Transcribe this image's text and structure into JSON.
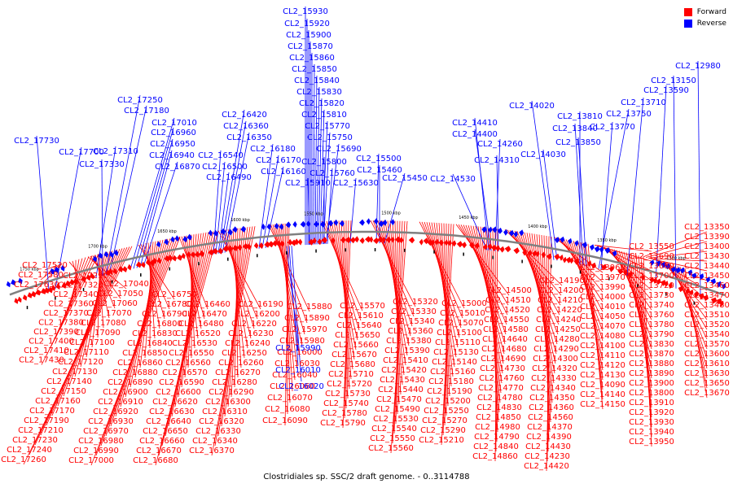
{
  "caption": "Clostridiales sp. SSC/2 draft genome. - 0..3114788",
  "legend": [
    {
      "label": "Forward",
      "color": "#ff0000"
    },
    {
      "label": "Reverse",
      "color": "#0000ff"
    }
  ],
  "colors": {
    "forward": "#ff0000",
    "reverse": "#0000ff",
    "backbone": "#808080"
  },
  "kbp_ticks": [
    "1750 kbp",
    "1700 kbp",
    "1650 kbp",
    "1600 kbp",
    "1550 kbp",
    "1500 kbp",
    "1450 kbp",
    "1400 kbp",
    "1350 kbp",
    "1300 kbp"
  ],
  "forward_labels": [
    "CL2_17520",
    "CL2_17580",
    "CL2_17630",
    "CL2_17290",
    "CL2_17320",
    "CL2_17340",
    "CL2_17360",
    "CL2_17370",
    "CL2_17380",
    "CL2_17390",
    "CL2_17400",
    "CL2_17410",
    "CL2_17430",
    "CL2_17040",
    "CL2_17050",
    "CL2_17060",
    "CL2_17070",
    "CL2_17080",
    "CL2_17090",
    "CL2_17100",
    "CL2_17110",
    "CL2_17120",
    "CL2_17130",
    "CL2_17140",
    "CL2_17150",
    "CL2_17160",
    "CL2_17170",
    "CL2_17190",
    "CL2_17210",
    "CL2_17230",
    "CL2_17240",
    "CL2_17260",
    "CL2_16750",
    "CL2_16780",
    "CL2_16790",
    "CL2_16800",
    "CL2_16830",
    "CL2_16840",
    "CL2_16850",
    "CL2_16860",
    "CL2_16880",
    "CL2_16890",
    "CL2_16900",
    "CL2_16910",
    "CL2_16920",
    "CL2_16930",
    "CL2_16970",
    "CL2_16980",
    "CL2_16990",
    "CL2_17000",
    "CL2_16460",
    "CL2_16470",
    "CL2_16480",
    "CL2_16520",
    "CL2_16530",
    "CL2_16550",
    "CL2_16560",
    "CL2_16570",
    "CL2_16590",
    "CL2_16600",
    "CL2_16620",
    "CL2_16630",
    "CL2_16640",
    "CL2_16650",
    "CL2_16660",
    "CL2_16670",
    "CL2_16680",
    "CL2_16190",
    "CL2_16200",
    "CL2_16220",
    "CL2_16230",
    "CL2_16240",
    "CL2_16250",
    "CL2_16260",
    "CL2_16270",
    "CL2_16280",
    "CL2_16290",
    "CL2_16300",
    "CL2_16310",
    "CL2_16320",
    "CL2_16330",
    "CL2_16340",
    "CL2_16370",
    "CL2_15880",
    "CL2_15890",
    "CL2_15970",
    "CL2_15980",
    "CL2_16000",
    "CL2_16030",
    "CL2_16040",
    "CL2_16060",
    "CL2_16070",
    "CL2_16080",
    "CL2_16090",
    "CL2_15570",
    "CL2_15610",
    "CL2_15640",
    "CL2_15650",
    "CL2_15660",
    "CL2_15670",
    "CL2_15680",
    "CL2_15710",
    "CL2_15720",
    "CL2_15730",
    "CL2_15740",
    "CL2_15780",
    "CL2_15790",
    "CL2_15320",
    "CL2_15330",
    "CL2_15340",
    "CL2_15360",
    "CL2_15380",
    "CL2_15390",
    "CL2_15410",
    "CL2_15420",
    "CL2_15430",
    "CL2_15440",
    "CL2_15470",
    "CL2_15490",
    "CL2_15530",
    "CL2_15540",
    "CL2_15550",
    "CL2_15560",
    "CL2_15000",
    "CL2_15010",
    "CL2_15070",
    "CL2_15100",
    "CL2_15110",
    "CL2_15130",
    "CL2_15140",
    "CL2_15160",
    "CL2_15180",
    "CL2_15190",
    "CL2_15200",
    "CL2_15250",
    "CL2_15270",
    "CL2_15290",
    "CL2_15210",
    "CL2_14500",
    "CL2_14510",
    "CL2_14520",
    "CL2_14550",
    "CL2_14580",
    "CL2_14640",
    "CL2_14680",
    "CL2_14690",
    "CL2_14730",
    "CL2_14760",
    "CL2_14770",
    "CL2_14780",
    "CL2_14830",
    "CL2_14850",
    "CL2_14980",
    "CL2_14790",
    "CL2_14840",
    "CL2_14860",
    "CL2_14190",
    "CL2_14200",
    "CL2_14210",
    "CL2_14220",
    "CL2_14240",
    "CL2_14250",
    "CL2_14280",
    "CL2_14290",
    "CL2_14300",
    "CL2_14320",
    "CL2_14330",
    "CL2_14340",
    "CL2_14350",
    "CL2_14360",
    "CL2_14560",
    "CL2_14370",
    "CL2_14390",
    "CL2_14430",
    "CL2_14230",
    "CL2_14420",
    "CL2_13960",
    "CL2_13970",
    "CL2_13990",
    "CL2_14000",
    "CL2_14010",
    "CL2_14050",
    "CL2_14070",
    "CL2_14080",
    "CL2_14100",
    "CL2_14110",
    "CL2_14120",
    "CL2_14130",
    "CL2_14090",
    "CL2_14140",
    "CL2_14150",
    "CL2_13550",
    "CL2_13690",
    "CL2_13680",
    "CL2_13700",
    "CL2_13720",
    "CL2_13730",
    "CL2_13740",
    "CL2_13760",
    "CL2_13780",
    "CL2_13790",
    "CL2_13830",
    "CL2_13870",
    "CL2_13880",
    "CL2_13890",
    "CL2_13900",
    "CL2_13800",
    "CL2_13910",
    "CL2_13920",
    "CL2_13930",
    "CL2_13940",
    "CL2_13950",
    "CL2_13350",
    "CL2_13390",
    "CL2_13400",
    "CL2_13430",
    "CL2_13440",
    "CL2_13450",
    "CL2_13460",
    "CL2_13470",
    "CL2_13480",
    "CL2_13510",
    "CL2_13520",
    "CL2_13540",
    "CL2_13570",
    "CL2_13600",
    "CL2_13610",
    "CL2_13630",
    "CL2_13650",
    "CL2_13670"
  ],
  "reverse_labels": [
    "CL2_17730",
    "CL2_17700",
    "CL2_17310",
    "CL2_17330",
    "CL2_17250",
    "CL2_17180",
    "CL2_17010",
    "CL2_16960",
    "CL2_16950",
    "CL2_16940",
    "CL2_16870",
    "CL2_16420",
    "CL2_16360",
    "CL2_16350",
    "CL2_16540",
    "CL2_16500",
    "CL2_16490",
    "CL2_16180",
    "CL2_16170",
    "CL2_16160",
    "CL2_15930",
    "CL2_15920",
    "CL2_15900",
    "CL2_15870",
    "CL2_15860",
    "CL2_15850",
    "CL2_15840",
    "CL2_15830",
    "CL2_15820",
    "CL2_15810",
    "CL2_15770",
    "CL2_15750",
    "CL2_15690",
    "CL2_15800",
    "CL2_15760",
    "CL2_15910",
    "CL2_15630",
    "CL2_15500",
    "CL2_15460",
    "CL2_15450",
    "CL2_14410",
    "CL2_14400",
    "CL2_14260",
    "CL2_14310",
    "CL2_14530",
    "CL2_14020",
    "CL2_14030",
    "CL2_13810",
    "CL2_13840",
    "CL2_13850",
    "CL2_13750",
    "CL2_13770",
    "CL2_13710",
    "CL2_13590",
    "CL2_13150",
    "CL2_12980",
    "CL2_15990",
    "CL2_16010",
    "CL2_16020"
  ]
}
